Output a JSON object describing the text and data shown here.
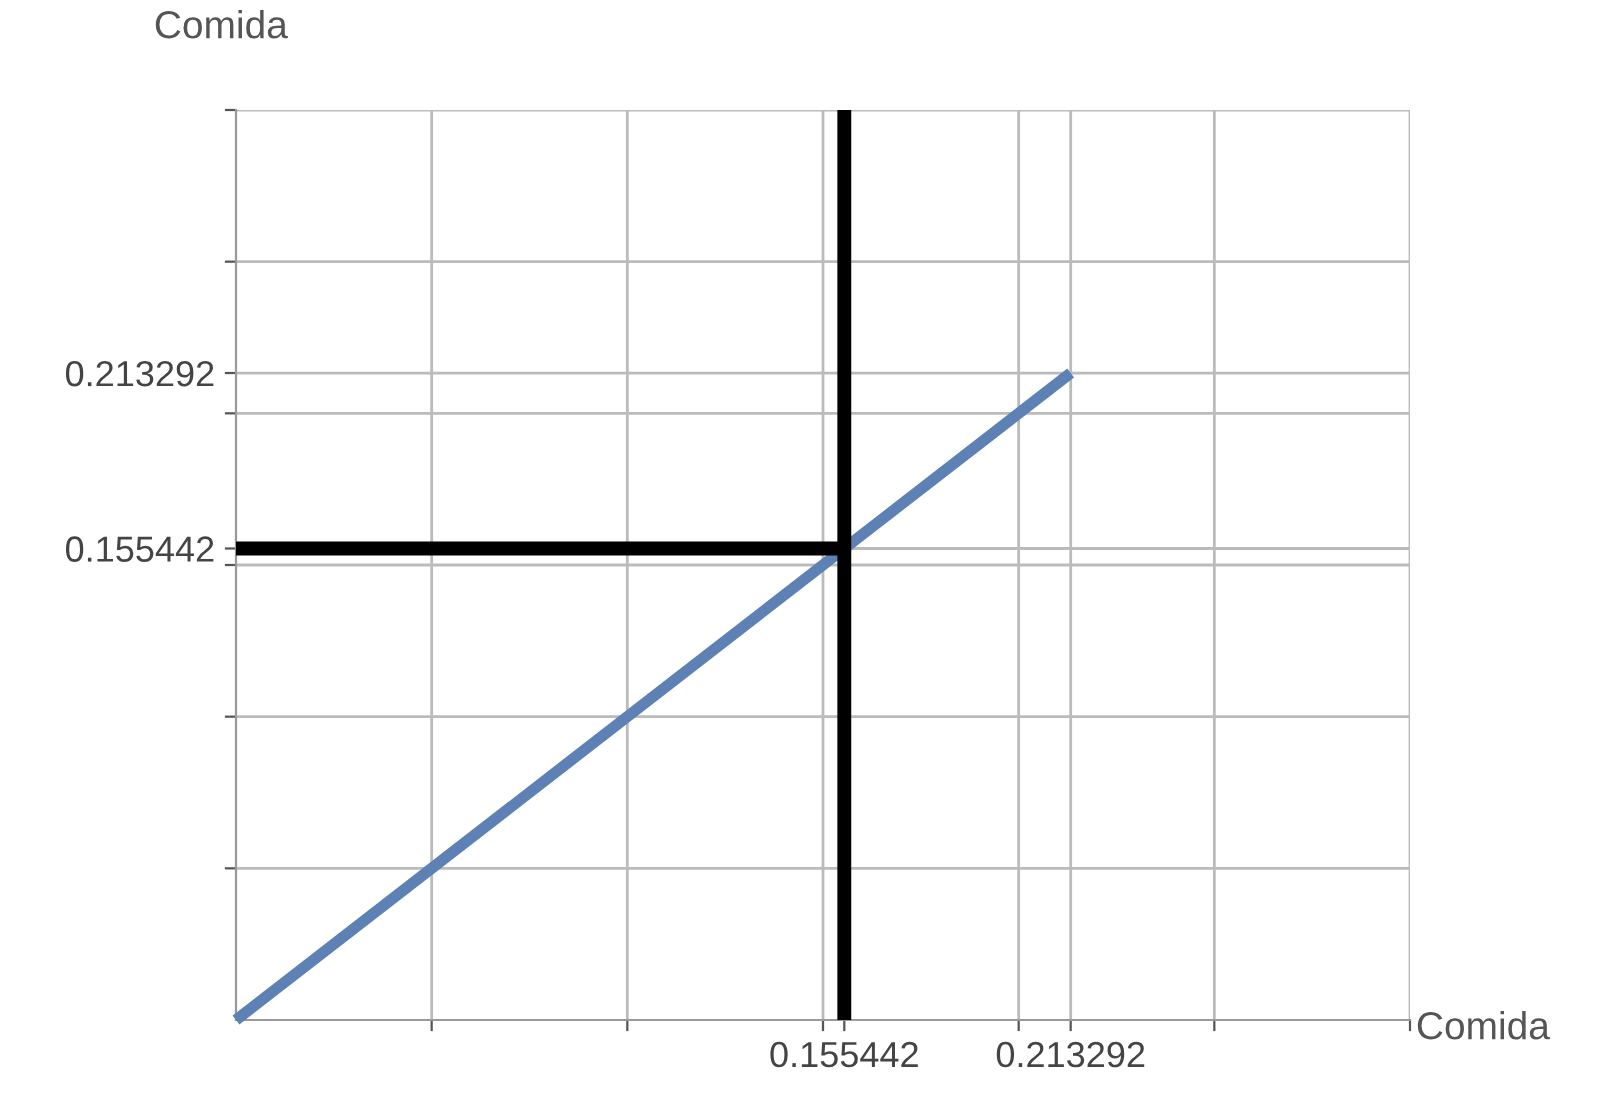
{
  "chart_data": {
    "type": "line",
    "xlabel": "Comida",
    "ylabel": "Comida",
    "series": [
      {
        "color": "#5e81b5",
        "x": [
          0,
          0.213292
        ],
        "values": [
          0,
          0.213292
        ]
      },
      {
        "color": "#000000",
        "x": [
          0,
          0.155442
        ],
        "values": [
          0.155442,
          0.155442
        ]
      },
      {
        "color": "#000000",
        "x": [
          0.155442,
          0.155442
        ],
        "values": [
          0,
          0.3
        ]
      }
    ],
    "xlim": [
      0,
      0.3
    ],
    "ylim": [
      0,
      0.3
    ],
    "xticks": [
      {
        "value": 0.05,
        "label": null
      },
      {
        "value": 0.1,
        "label": null
      },
      {
        "value": 0.15,
        "label": null
      },
      0.155442,
      {
        "value": 0.2,
        "label": null
      },
      0.213292,
      {
        "value": 0.25,
        "label": null
      },
      {
        "value": 0.3,
        "label": null
      }
    ],
    "yticks": [
      {
        "value": 0.05,
        "label": null
      },
      {
        "value": 0.1,
        "label": null
      },
      {
        "value": 0.15,
        "label": null
      },
      0.155442,
      {
        "value": 0.2,
        "label": null
      },
      0.213292,
      {
        "value": 0.25,
        "label": null
      },
      {
        "value": 0.3,
        "label": null
      }
    ],
    "grid": true,
    "marker": "none",
    "line_style": "solid"
  }
}
